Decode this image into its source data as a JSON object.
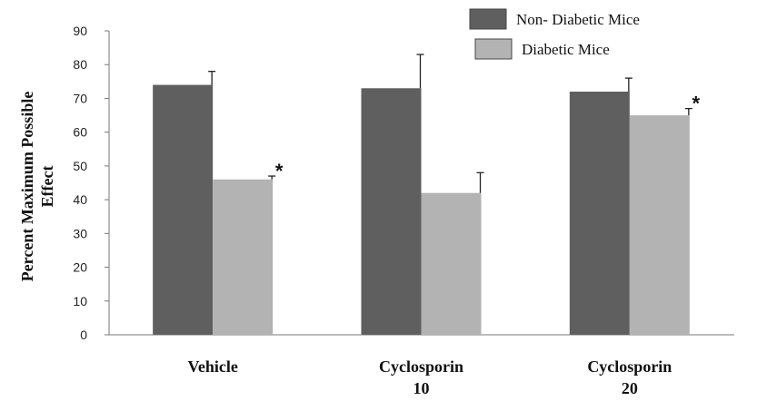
{
  "chart_data": {
    "type": "bar",
    "categories": [
      [
        "Vehicle"
      ],
      [
        "Cyclosporin",
        "10"
      ],
      [
        "Cyclosporin",
        "20"
      ]
    ],
    "series": [
      {
        "name": "Non- Diabetic Mice",
        "color": "#5f5f5f",
        "values": [
          74,
          73,
          72
        ],
        "errors": [
          4,
          10,
          4
        ],
        "significance": [
          "",
          "",
          ""
        ]
      },
      {
        "name": "Diabetic Mice",
        "color": "#b3b3b3",
        "values": [
          46,
          42,
          65
        ],
        "errors": [
          1,
          6,
          2
        ],
        "significance": [
          "*",
          "",
          "*"
        ]
      }
    ],
    "ylabel": [
      "Percent Maximum Possible",
      "Effect"
    ],
    "ylim": [
      0,
      90
    ],
    "yticks": [
      0,
      10,
      20,
      30,
      40,
      50,
      60,
      70,
      80,
      90
    ],
    "grid": false,
    "legend_position": "top-right"
  }
}
